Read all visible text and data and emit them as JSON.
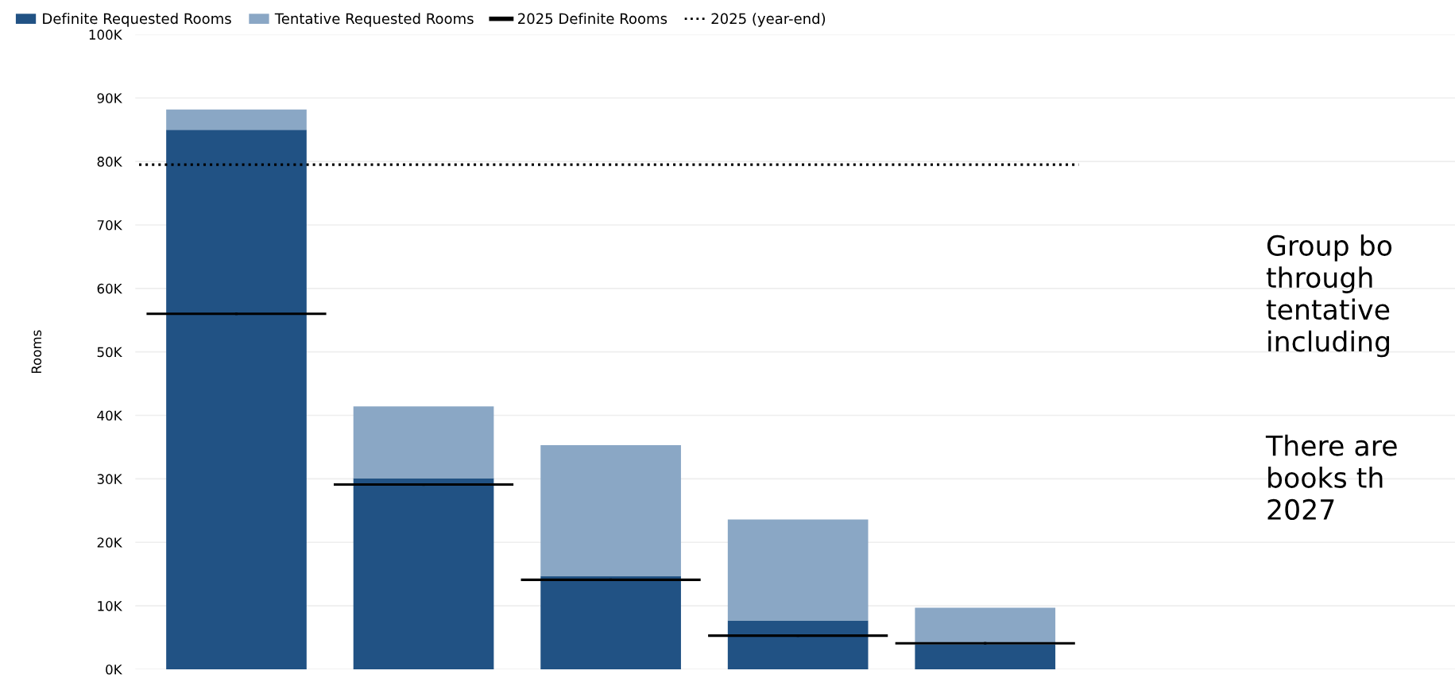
{
  "chart_data": {
    "type": "bar",
    "ylabel": "Rooms",
    "stacked": true,
    "categories": [
      null,
      null,
      null,
      null,
      null,
      null,
      null
    ],
    "series": [
      {
        "name": "Definite Requested Rooms",
        "color": "#215284",
        "values": [
          85000,
          30100,
          14700,
          7700,
          3900,
          null,
          null
        ]
      },
      {
        "name": "Tentative Requested Rooms",
        "color": "#8aa7c5",
        "values": [
          3200,
          11300,
          20600,
          15900,
          5800,
          null,
          null
        ]
      },
      {
        "name": "2025 Definite Rooms",
        "type": "scatter",
        "color": "#000000",
        "values": [
          56000,
          29100,
          14100,
          5300,
          4100,
          null,
          null
        ]
      }
    ],
    "ref_lines": [
      {
        "axis": "y",
        "value": 79500,
        "label": "2025 (year-end)",
        "color": "#000000",
        "line_style": "dotted"
      }
    ],
    "ylim": [
      0,
      100000
    ],
    "yticks": [
      {
        "value": 0,
        "label": "0K"
      },
      {
        "value": 10000,
        "label": "10K"
      },
      {
        "value": 20000,
        "label": "20K"
      },
      {
        "value": 30000,
        "label": "30K"
      },
      {
        "value": 40000,
        "label": "40K"
      },
      {
        "value": 50000,
        "label": "50K"
      },
      {
        "value": 60000,
        "label": "60K"
      },
      {
        "value": 70000,
        "label": "70K"
      },
      {
        "value": 80000,
        "label": "80K"
      },
      {
        "value": 90000,
        "label": "90K"
      },
      {
        "value": 100000,
        "label": "100K"
      }
    ],
    "grid": "y",
    "legend": "top left",
    "tick_labels": "y",
    "annotations": [
      "Group bo\nthrough\ntentative\nincluding",
      "There are\nbooks th\n2027"
    ]
  }
}
